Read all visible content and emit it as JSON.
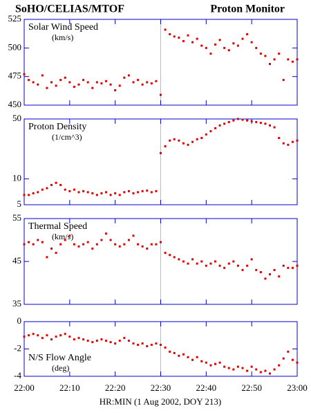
{
  "header": {
    "left": "SoHO/CELIAS/MTOF",
    "right": "Proton Monitor"
  },
  "xlabel": "HR:MIN (1 Aug 2002, DOY 213)",
  "x": [
    "22:00",
    "22:01",
    "22:02",
    "22:03",
    "22:04",
    "22:05",
    "22:06",
    "22:07",
    "22:08",
    "22:09",
    "22:10",
    "22:11",
    "22:12",
    "22:13",
    "22:14",
    "22:15",
    "22:16",
    "22:17",
    "22:18",
    "22:19",
    "22:20",
    "22:21",
    "22:22",
    "22:23",
    "22:24",
    "22:25",
    "22:26",
    "22:27",
    "22:28",
    "22:29",
    "22:30",
    "22:31",
    "22:32",
    "22:33",
    "22:34",
    "22:35",
    "22:36",
    "22:37",
    "22:38",
    "22:39",
    "22:40",
    "22:41",
    "22:42",
    "22:43",
    "22:44",
    "22:45",
    "22:46",
    "22:47",
    "22:48",
    "22:49",
    "22:50",
    "22:51",
    "22:52",
    "22:53",
    "22:54",
    "22:55",
    "22:56",
    "22:57",
    "22:58",
    "22:59",
    "23:00"
  ],
  "xlim": [
    "22:00",
    "23:00"
  ],
  "xticks": [
    "22:00",
    "22:10",
    "22:20",
    "22:30",
    "22:40",
    "22:50",
    "23:00"
  ],
  "vline": "22:30",
  "chart_data": [
    {
      "type": "scatter",
      "title": "Solar Wind Speed",
      "subtitle": "(km/s)",
      "color": "#dd0000",
      "log": false,
      "ylim": [
        450,
        525
      ],
      "yticks": [
        450,
        475,
        500,
        525
      ],
      "values": [
        477,
        472,
        470,
        468,
        476,
        465,
        470,
        467,
        472,
        474,
        470,
        466,
        468,
        472,
        470,
        465,
        470,
        469,
        471,
        468,
        463,
        467,
        474,
        476,
        470,
        472,
        468,
        470,
        469,
        471,
        459,
        516,
        512,
        510,
        509,
        506,
        511,
        505,
        508,
        502,
        500,
        495,
        503,
        507,
        500,
        498,
        504,
        502,
        508,
        512,
        505,
        500,
        495,
        493,
        486,
        490,
        495,
        472,
        490,
        488,
        490
      ]
    },
    {
      "type": "scatter",
      "title": "Proton Density",
      "subtitle": "(1/cm^3)",
      "color": "#dd0000",
      "log": true,
      "ylim": [
        5,
        50
      ],
      "yticks": [
        5,
        10,
        50
      ],
      "values": [
        6.5,
        6.5,
        6.8,
        7,
        7.5,
        7.8,
        8.5,
        9,
        8.5,
        7.5,
        7.2,
        7.5,
        7,
        7.2,
        7,
        6.8,
        6.5,
        6.8,
        7,
        6.5,
        6.8,
        6.5,
        7,
        7.2,
        6.8,
        7,
        7.2,
        7.3,
        7,
        7.2,
        20,
        24,
        28,
        29,
        28,
        26,
        25,
        27,
        29,
        30,
        33,
        36,
        39,
        42,
        44,
        46,
        48,
        50,
        49,
        48,
        47,
        46,
        45,
        44,
        42,
        40,
        30,
        26,
        25,
        27,
        28
      ]
    },
    {
      "type": "scatter",
      "title": "Thermal Speed",
      "subtitle": "(km/s)",
      "color": "#dd0000",
      "log": false,
      "ylim": [
        35,
        55
      ],
      "yticks": [
        35,
        45,
        55
      ],
      "values": [
        49,
        49.5,
        49,
        50,
        49.5,
        46,
        48,
        47,
        49,
        50,
        51,
        49,
        48.5,
        49,
        49.5,
        48,
        49,
        50,
        51.5,
        50,
        49,
        48.5,
        49,
        50,
        51,
        49,
        48.5,
        48,
        49,
        49,
        49.5,
        47,
        46.5,
        46,
        45.5,
        45,
        44.5,
        45.5,
        44.5,
        45,
        44,
        44.5,
        45,
        44,
        43.5,
        44.5,
        45,
        44,
        43,
        44,
        45.5,
        43,
        42.5,
        41,
        42,
        43,
        41.5,
        44,
        43.5,
        43.5,
        44
      ]
    },
    {
      "type": "scatter",
      "title": "N/S Flow Angle",
      "subtitle": "(deg)",
      "color": "#dd0000",
      "log": false,
      "ylim": [
        -4,
        0
      ],
      "yticks": [
        -4,
        -2,
        0
      ],
      "values": [
        -1.1,
        -1.0,
        -0.9,
        -1.0,
        -1.2,
        -1.0,
        -1.3,
        -1.1,
        -1.0,
        -0.9,
        -1.1,
        -1.3,
        -1.2,
        -1.3,
        -1.4,
        -1.5,
        -1.4,
        -1.3,
        -1.4,
        -1.5,
        -1.6,
        -1.4,
        -1.2,
        -1.4,
        -1.6,
        -1.7,
        -1.6,
        -1.8,
        -1.7,
        -1.6,
        -1.7,
        -1.9,
        -2.2,
        -2.3,
        -2.5,
        -2.4,
        -2.6,
        -2.8,
        -2.6,
        -2.9,
        -3.0,
        -3.2,
        -3.1,
        -3.0,
        -3.3,
        -3.4,
        -3.5,
        -3.3,
        -3.4,
        -3.6,
        -3.3,
        -3.5,
        -3.7,
        -3.6,
        -3.8,
        -3.5,
        -3.2,
        -2.7,
        -2.2,
        -2.8,
        -3.0
      ]
    }
  ]
}
